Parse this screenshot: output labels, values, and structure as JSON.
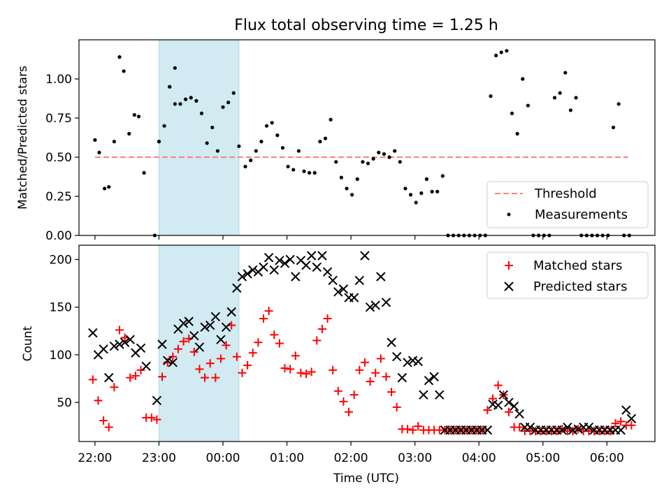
{
  "title": "Flux total observing time = 1.25 h",
  "colors": {
    "threshold": "#ff7f7f",
    "measurement": "#000000",
    "matched": "#ff0000",
    "predicted": "#000000",
    "shade": "#add8e6"
  },
  "chart_data": [
    {
      "type": "scatter",
      "panel": "top",
      "title": "Flux total observing time = 1.25 h",
      "xlabel": "",
      "ylabel": "Matched/Predicted stars",
      "xlim": [
        "21:45",
        "06:45"
      ],
      "ylim": [
        0,
        1.25
      ],
      "yticks": [
        0.0,
        0.25,
        0.5,
        0.75,
        1.0
      ],
      "ytick_labels": [
        "0.00",
        "0.25",
        "0.50",
        "0.75",
        "1.00"
      ],
      "xticks": [
        "22:00",
        "23:00",
        "00:00",
        "01:00",
        "02:00",
        "03:00",
        "04:00",
        "05:00",
        "06:00"
      ],
      "shaded_span": [
        "23:00",
        "00:15"
      ],
      "legend": "bottom-right",
      "threshold": {
        "name": "Threshold",
        "x": [
          "22:00",
          "06:20"
        ],
        "y": 0.5
      },
      "series": [
        {
          "name": "Measurements",
          "x": [
            "22:00",
            "22:04",
            "22:09",
            "22:13",
            "22:18",
            "22:23",
            "22:27",
            "22:32",
            "22:37",
            "22:41",
            "22:46",
            "22:56",
            "23:00",
            "23:05",
            "23:10",
            "23:15",
            "23:20",
            "23:25",
            "23:30",
            "23:35",
            "23:40",
            "23:45",
            "23:50",
            "23:55",
            "24:00",
            "24:05",
            "24:10",
            "24:15",
            "24:21",
            "24:26",
            "24:31",
            "24:36",
            "24:41",
            "24:46",
            "24:51",
            "24:56",
            "25:01",
            "25:06",
            "25:11",
            "25:16",
            "25:21",
            "25:26",
            "25:31",
            "25:36",
            "25:41",
            "25:46",
            "25:51",
            "25:56",
            "26:01",
            "26:06",
            "26:11",
            "26:16",
            "26:21",
            "26:26",
            "26:31",
            "26:36",
            "26:41",
            "26:46",
            "26:51",
            "26:56",
            "27:01",
            "27:06",
            "27:11",
            "27:16",
            "27:21",
            "27:26",
            "27:31",
            "27:36",
            "27:41",
            "27:46",
            "27:51",
            "27:56",
            "28:01",
            "28:06",
            "28:11",
            "28:16",
            "28:21",
            "28:26",
            "28:31",
            "28:36",
            "28:41",
            "28:46",
            "28:51",
            "28:56",
            "29:01",
            "29:06",
            "29:11",
            "29:16",
            "29:21",
            "29:26",
            "29:31",
            "29:36",
            "29:41",
            "29:46",
            "29:51",
            "29:56",
            "30:01",
            "30:06",
            "30:11",
            "30:16",
            "30:21",
            "23:00",
            "23:10",
            "23:15"
          ],
          "y": [
            0.61,
            0.53,
            0.3,
            0.31,
            0.6,
            1.14,
            1.05,
            0.65,
            0.77,
            0.76,
            0.4,
            0.0,
            0.6,
            0.7,
            0.95,
            1.07,
            0.84,
            0.87,
            0.88,
            0.86,
            0.78,
            0.59,
            0.69,
            0.54,
            0.82,
            0.85,
            0.91,
            0.57,
            0.44,
            0.48,
            0.54,
            0.6,
            0.7,
            0.72,
            0.64,
            0.56,
            0.44,
            0.42,
            0.54,
            0.41,
            0.4,
            0.4,
            0.6,
            0.62,
            0.74,
            0.47,
            0.37,
            0.3,
            0.26,
            0.36,
            0.47,
            0.46,
            0.49,
            0.53,
            0.52,
            0.5,
            0.54,
            0.47,
            0.3,
            0.26,
            0.21,
            0.27,
            0.36,
            0.28,
            0.28,
            0.38,
            0.0,
            0.0,
            0.0,
            0.0,
            0.0,
            0.0,
            0.0,
            0.0,
            0.89,
            1.15,
            1.17,
            1.18,
            0.78,
            0.65,
            1.0,
            0.83,
            0.0,
            0.0,
            0.0,
            0.0,
            0.88,
            0.91,
            1.04,
            0.8,
            0.88,
            0.0,
            0.0,
            0.0,
            0.0,
            0.0,
            0.0,
            0.69,
            0.84,
            0.0,
            0.0,
            0.6,
            0.95,
            0.84
          ]
        }
      ]
    },
    {
      "type": "scatter",
      "panel": "bottom",
      "xlabel": "Time (UTC)",
      "ylabel": "Count",
      "xlim": [
        "21:45",
        "06:45"
      ],
      "ylim": [
        9,
        215
      ],
      "yticks": [
        50,
        100,
        150,
        200
      ],
      "xticks": [
        "22:00",
        "23:00",
        "00:00",
        "01:00",
        "02:00",
        "03:00",
        "04:00",
        "05:00",
        "06:00"
      ],
      "shaded_span": [
        "23:00",
        "00:15"
      ],
      "legend": "top-right",
      "series": [
        {
          "name": "Matched stars",
          "marker": "+",
          "x": [
            "21:58",
            "22:03",
            "22:08",
            "22:13",
            "22:18",
            "22:23",
            "22:28",
            "22:33",
            "22:38",
            "22:43",
            "22:48",
            "22:53",
            "22:58",
            "23:03",
            "23:08",
            "23:13",
            "23:18",
            "23:23",
            "23:28",
            "23:33",
            "23:38",
            "23:43",
            "23:48",
            "23:53",
            "23:58",
            "24:03",
            "24:08",
            "24:13",
            "24:18",
            "24:23",
            "24:28",
            "24:33",
            "24:38",
            "24:43",
            "24:48",
            "24:53",
            "24:58",
            "25:03",
            "25:08",
            "25:13",
            "25:18",
            "25:23",
            "25:28",
            "25:33",
            "25:38",
            "25:43",
            "25:48",
            "25:53",
            "25:58",
            "26:03",
            "26:08",
            "26:13",
            "26:18",
            "26:23",
            "26:28",
            "26:33",
            "26:38",
            "26:43",
            "26:48",
            "26:53",
            "26:58",
            "27:03",
            "27:08",
            "27:13",
            "27:18",
            "27:23",
            "27:28",
            "27:33",
            "27:38",
            "27:43",
            "27:48",
            "27:53",
            "27:58",
            "28:03",
            "28:08",
            "28:13",
            "28:18",
            "28:23",
            "28:28",
            "28:33",
            "28:38",
            "28:43",
            "28:48",
            "28:53",
            "28:58",
            "29:03",
            "29:08",
            "29:13",
            "29:18",
            "29:23",
            "29:28",
            "29:33",
            "29:38",
            "29:43",
            "29:48",
            "29:53",
            "29:58",
            "30:03",
            "30:08",
            "30:13",
            "30:18",
            "30:23"
          ],
          "y": [
            74,
            52,
            31,
            24,
            66,
            126,
            118,
            76,
            78,
            84,
            34,
            34,
            32,
            77,
            92,
            98,
            106,
            114,
            117,
            103,
            85,
            76,
            91,
            76,
            96,
            110,
            131,
            98,
            81,
            89,
            102,
            113,
            138,
            146,
            121,
            112,
            86,
            85,
            99,
            81,
            80,
            82,
            115,
            127,
            138,
            84,
            62,
            51,
            40,
            58,
            84,
            92,
            72,
            81,
            96,
            77,
            61,
            45,
            22,
            22,
            21,
            25,
            21,
            21,
            21,
            21,
            21,
            21,
            21,
            21,
            21,
            21,
            21,
            21,
            42,
            54,
            68,
            58,
            40,
            24,
            24,
            20,
            20,
            20,
            20,
            20,
            20,
            20,
            22,
            20,
            20,
            22,
            20,
            20,
            20,
            20,
            20,
            20,
            28,
            30,
            26,
            26
          ]
        },
        {
          "name": "Predicted stars",
          "marker": "x",
          "x": [
            "21:58",
            "22:03",
            "22:08",
            "22:13",
            "22:18",
            "22:23",
            "22:28",
            "22:33",
            "22:38",
            "22:43",
            "22:48",
            "22:58",
            "23:03",
            "23:08",
            "23:13",
            "23:18",
            "23:23",
            "23:28",
            "23:33",
            "23:38",
            "23:43",
            "23:48",
            "23:53",
            "23:58",
            "24:03",
            "24:08",
            "24:13",
            "24:18",
            "24:23",
            "24:28",
            "24:33",
            "24:38",
            "24:43",
            "24:48",
            "24:53",
            "24:58",
            "25:03",
            "25:08",
            "25:13",
            "25:18",
            "25:23",
            "25:28",
            "25:33",
            "25:38",
            "25:43",
            "25:48",
            "25:53",
            "25:58",
            "26:03",
            "26:08",
            "26:13",
            "26:18",
            "26:23",
            "26:28",
            "26:33",
            "26:38",
            "26:43",
            "26:48",
            "26:53",
            "26:58",
            "27:03",
            "27:08",
            "27:13",
            "27:18",
            "27:23",
            "27:28",
            "27:33",
            "27:38",
            "27:43",
            "27:48",
            "27:53",
            "27:58",
            "28:03",
            "28:08",
            "28:13",
            "28:18",
            "28:23",
            "28:28",
            "28:33",
            "28:38",
            "28:43",
            "28:48",
            "28:53",
            "28:58",
            "29:03",
            "29:08",
            "29:13",
            "29:18",
            "29:23",
            "29:28",
            "29:33",
            "29:38",
            "29:43",
            "29:48",
            "29:53",
            "29:58",
            "30:03",
            "30:08",
            "30:13",
            "30:18",
            "30:23"
          ],
          "y": [
            123,
            100,
            106,
            76,
            109,
            111,
            113,
            116,
            102,
            107,
            88,
            52,
            111,
            94,
            92,
            127,
            133,
            135,
            120,
            108,
            129,
            131,
            140,
            116,
            129,
            145,
            170,
            182,
            185,
            189,
            187,
            192,
            202,
            189,
            199,
            196,
            200,
            182,
            199,
            194,
            204,
            192,
            204,
            187,
            178,
            166,
            169,
            160,
            160,
            178,
            204,
            150,
            152,
            182,
            155,
            113,
            98,
            76,
            92,
            94,
            93,
            58,
            73,
            77,
            58,
            21,
            21,
            21,
            21,
            21,
            21,
            21,
            21,
            21,
            48,
            47,
            58,
            50,
            46,
            38,
            24,
            24,
            21,
            21,
            21,
            21,
            21,
            21,
            24,
            21,
            22,
            24,
            24,
            21,
            21,
            21,
            21,
            21,
            21,
            42,
            33
          ]
        }
      ]
    }
  ]
}
